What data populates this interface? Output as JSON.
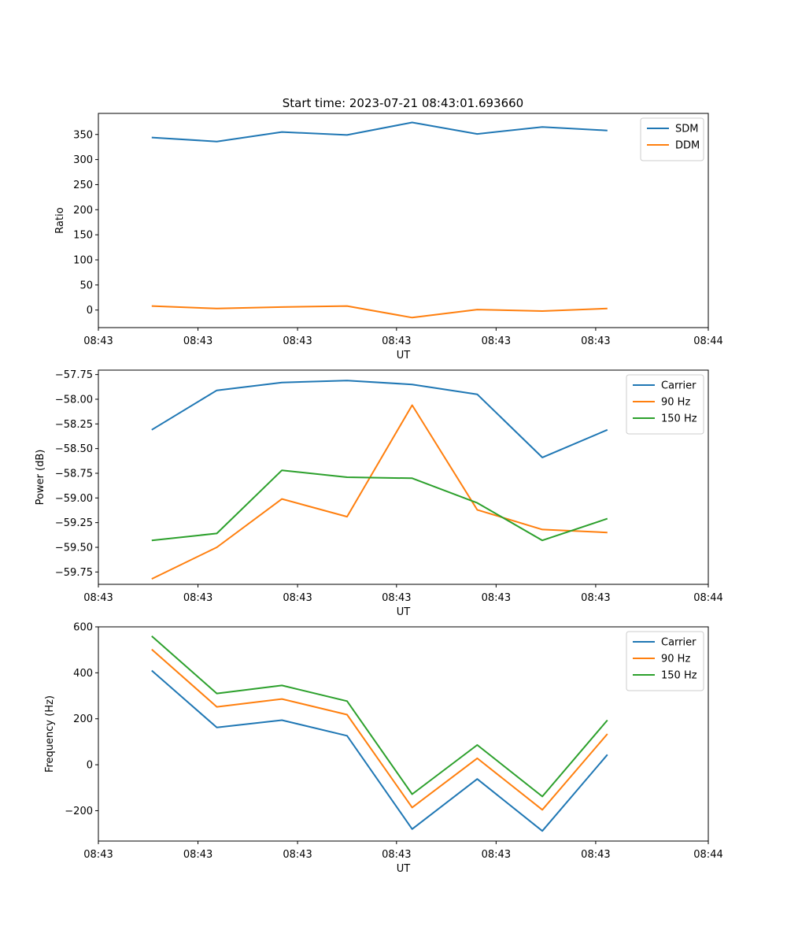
{
  "chart_data": [
    {
      "type": "line",
      "title": "Start time: 2023-07-21 08:43:01.693660",
      "xlabel": "UT",
      "ylabel": "Ratio",
      "x": [
        1,
        2,
        3,
        4,
        5,
        6,
        7,
        8
      ],
      "xlim": [
        0.18,
        9.55
      ],
      "xticks": [
        0.18,
        1.71,
        3.24,
        4.76,
        6.29,
        7.82,
        9.55
      ],
      "xtick_labels": [
        "08:43",
        "08:43",
        "08:43",
        "08:43",
        "08:43",
        "08:43",
        "08:44"
      ],
      "ylim": [
        -35,
        392
      ],
      "yticks": [
        0,
        50,
        100,
        150,
        200,
        250,
        300,
        350
      ],
      "ytick_labels": [
        "0",
        "50",
        "100",
        "150",
        "200",
        "250",
        "300",
        "350"
      ],
      "legend": "top-right",
      "series": [
        {
          "name": "SDM",
          "color": "#1f77b4",
          "values": [
            344,
            336,
            355,
            349,
            374,
            351,
            365,
            358
          ]
        },
        {
          "name": "DDM",
          "color": "#ff7f0e",
          "values": [
            8,
            3,
            6,
            8,
            -15,
            1,
            -2,
            3
          ]
        }
      ]
    },
    {
      "type": "line",
      "xlabel": "UT",
      "ylabel": "Power (dB)",
      "x": [
        1,
        2,
        3,
        4,
        5,
        6,
        7,
        8
      ],
      "xlim": [
        0.18,
        9.55
      ],
      "xticks": [
        0.18,
        1.71,
        3.24,
        4.76,
        6.29,
        7.82,
        9.55
      ],
      "xtick_labels": [
        "08:43",
        "08:43",
        "08:43",
        "08:43",
        "08:43",
        "08:43",
        "08:44"
      ],
      "ylim": [
        -59.875,
        -57.705
      ],
      "yticks": [
        -59.75,
        -59.5,
        -59.25,
        -59.0,
        -58.75,
        -58.5,
        -58.25,
        -58.0,
        -57.75
      ],
      "ytick_labels": [
        "−59.75",
        "−59.50",
        "−59.25",
        "−59.00",
        "−58.75",
        "−58.50",
        "−58.25",
        "−58.00",
        "−57.75"
      ],
      "legend": "top-right",
      "series": [
        {
          "name": "Carrier",
          "color": "#1f77b4",
          "values": [
            -58.31,
            -57.91,
            -57.83,
            -57.81,
            -57.85,
            -57.95,
            -58.59,
            -58.31
          ]
        },
        {
          "name": "90 Hz",
          "color": "#ff7f0e",
          "values": [
            -59.82,
            -59.5,
            -59.01,
            -59.19,
            -58.06,
            -59.12,
            -59.32,
            -59.35
          ]
        },
        {
          "name": "150 Hz",
          "color": "#2ca02c",
          "values": [
            -59.43,
            -59.36,
            -58.72,
            -58.79,
            -58.8,
            -59.05,
            -59.43,
            -59.21
          ]
        }
      ]
    },
    {
      "type": "line",
      "xlabel": "UT",
      "ylabel": "Frequency (Hz)",
      "x": [
        1,
        2,
        3,
        4,
        5,
        6,
        7,
        8
      ],
      "xlim": [
        0.18,
        9.55
      ],
      "xticks": [
        0.18,
        1.71,
        3.24,
        4.76,
        6.29,
        7.82,
        9.55
      ],
      "xtick_labels": [
        "08:43",
        "08:43",
        "08:43",
        "08:43",
        "08:43",
        "08:43",
        "08:44"
      ],
      "ylim": [
        -332,
        600
      ],
      "yticks": [
        -200,
        0,
        200,
        400,
        600
      ],
      "ytick_labels": [
        "−200",
        "0",
        "200",
        "400",
        "600"
      ],
      "legend": "top-right",
      "series": [
        {
          "name": "Carrier",
          "color": "#1f77b4",
          "values": [
            410,
            162,
            194,
            126,
            -280,
            -62,
            -288,
            44
          ]
        },
        {
          "name": "90 Hz",
          "color": "#ff7f0e",
          "values": [
            502,
            252,
            286,
            218,
            -186,
            28,
            -196,
            134
          ]
        },
        {
          "name": "150 Hz",
          "color": "#2ca02c",
          "values": [
            560,
            310,
            345,
            277,
            -128,
            86,
            -138,
            194
          ]
        }
      ]
    }
  ]
}
